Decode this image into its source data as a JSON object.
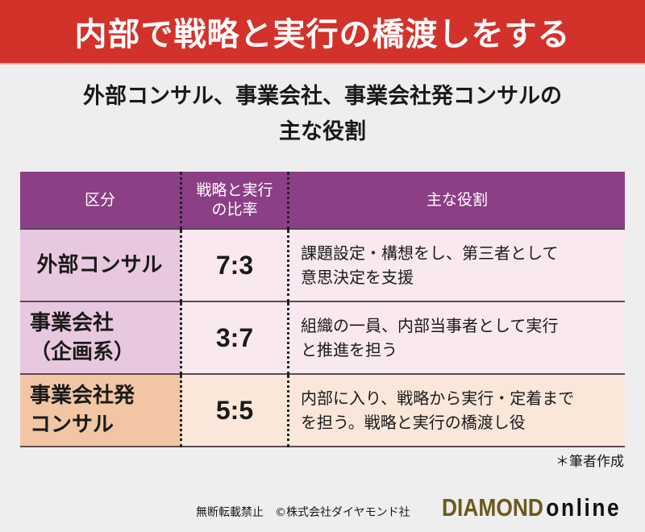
{
  "title": "内部で戦略と実行の橋渡しをする",
  "subtitle": {
    "line1": "外部コンサル、事業会社、事業会社発コンサルの",
    "line2": "主な役割"
  },
  "table": {
    "headers": [
      "区分",
      "戦略と実行\nの比率",
      "主な役割"
    ],
    "header_ratio_line1": "戦略と実行",
    "header_ratio_line2": "の比率",
    "rows": [
      {
        "category_line1": "外部コンサル",
        "category_line2": "",
        "ratio": "7:3",
        "role_line1": "課題設定・構想をし、第三者として",
        "role_line2": "意思決定を支援"
      },
      {
        "category_line1": "事業会社",
        "category_line2": "（企画系）",
        "ratio": "3:7",
        "role_line1": "組織の一員、内部当事者として実行",
        "role_line2": "と推進を担う"
      },
      {
        "category_line1": "事業会社発",
        "category_line2": "コンサル",
        "ratio": "5:5",
        "role_line1": "内部に入り、戦略から実行・定着まで",
        "role_line2": "を担う。戦略と実行の橋渡し役"
      }
    ]
  },
  "note": "＊筆者作成",
  "footer": {
    "copyright": "無断転載禁止　©株式会社ダイヤモンド社",
    "logo_part1": "DIAMOND",
    "logo_part2": "online"
  },
  "colors": {
    "title_bg": "#d2322a",
    "header_bg": "#8b3f86",
    "purple_cell": "#e8c8e0",
    "orange_cell": "#f2c6a4"
  }
}
